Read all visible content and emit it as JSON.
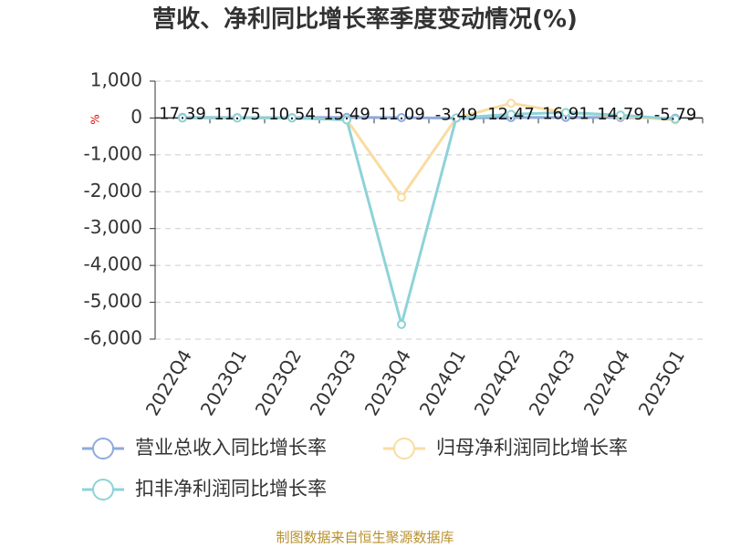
{
  "chart_data": {
    "type": "line",
    "title": "营收、净利同比增长率季度变动情况(%)",
    "y_label": "%",
    "categories": [
      "2022Q4",
      "2023Q1",
      "2023Q2",
      "2023Q3",
      "2023Q4",
      "2024Q1",
      "2024Q2",
      "2024Q3",
      "2024Q4",
      "2025Q1"
    ],
    "series": [
      {
        "name": "营业总收入同比增长率",
        "color": "#8faadc",
        "values": [
          17.39,
          11.75,
          10.54,
          15.49,
          11.09,
          -3.49,
          12.47,
          16.91,
          14.79,
          -5.79
        ]
      },
      {
        "name": "归母净利润同比增长率",
        "color": "#f9dca0",
        "values": [
          0,
          0,
          0,
          -50,
          -2150,
          0,
          400,
          150,
          50,
          -50
        ]
      },
      {
        "name": "扣非净利润同比增长率",
        "color": "#8dd3d8",
        "values": [
          0,
          0,
          0,
          -50,
          -5600,
          0,
          100,
          150,
          80,
          -30
        ]
      }
    ],
    "ylim": [
      -6000,
      1000
    ],
    "yticks": [
      {
        "value": 1000,
        "label": "1,000"
      },
      0,
      {
        "value": -1000,
        "label": "-1,000"
      },
      {
        "value": -2000,
        "label": "-2,000"
      },
      {
        "value": -3000,
        "label": "-3,000"
      },
      {
        "value": -4000,
        "label": "-4,000"
      },
      {
        "value": -5000,
        "label": "-5,000"
      },
      {
        "value": -6000,
        "label": "-6,000"
      }
    ],
    "grid": true,
    "source": "制图数据来自恒生聚源数据库"
  }
}
